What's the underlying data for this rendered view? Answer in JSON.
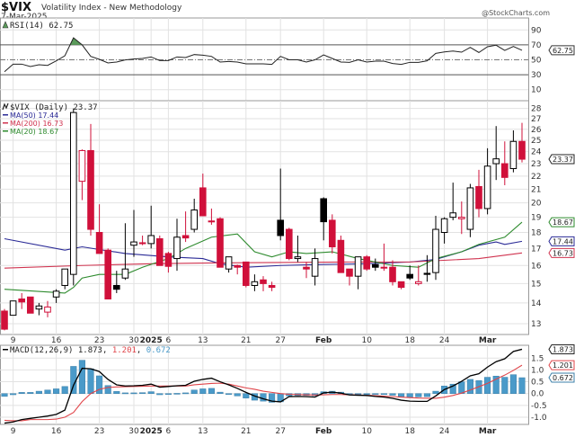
{
  "header": {
    "symbol": "$VIX",
    "name": "Volatility Index - New Methodology",
    "date": "7-Mar-2025",
    "watermark": "@StockCharts.com"
  },
  "colors": {
    "up": "#000000",
    "down": "#d0103a",
    "ma50": "#2a2a96",
    "ma200": "#d0334f",
    "ma20": "#2e8b2e",
    "macd": "#000000",
    "signal": "#e0454a",
    "histogram": "#4a9ac9",
    "rsi_fill": "#5a9a5a"
  },
  "chart_data": [
    {
      "type": "line",
      "panel": "rsi",
      "legend": "RSI(14) 62.75",
      "last_label": "62.75",
      "ylim": [
        0,
        100
      ],
      "yticks": [
        10,
        30,
        50,
        70,
        90
      ],
      "reference_lines": [
        30,
        50,
        70
      ],
      "grid": true,
      "values": [
        34.1,
        44.2,
        44.2,
        41,
        43.4,
        42.5,
        48.6,
        55.4,
        79.5,
        70,
        54.6,
        50.6,
        45.8,
        47,
        49.8,
        51,
        51.8,
        53.8,
        49,
        49,
        53.8,
        53,
        57,
        56.2,
        54.6,
        47,
        47.8,
        47,
        44.6,
        44.6,
        44.6,
        43.8,
        54.6,
        50,
        50,
        47,
        50,
        56.6,
        51.8,
        47,
        46.6,
        50,
        47,
        48.2,
        48.2,
        45,
        43.8,
        46.6,
        46.6,
        48.6,
        58.6,
        60.6,
        61.8,
        60.2,
        66.6,
        59.8,
        67.5,
        69.5,
        62.6,
        67.8,
        62.75
      ]
    },
    {
      "type": "candlestick",
      "panel": "price",
      "scale": "log",
      "legend": "$VIX (Daily) 23.37",
      "last_label": "23.37",
      "ylim": [
        12.5,
        28.5
      ],
      "yticks": [
        13,
        14,
        15,
        16,
        17,
        18,
        19,
        20,
        21,
        22,
        23,
        24,
        25,
        26,
        27,
        28
      ],
      "grid": true,
      "dates": [
        "2024-12-06",
        "2024-12-09",
        "2024-12-10",
        "2024-12-11",
        "2024-12-12",
        "2024-12-13",
        "2024-12-16",
        "2024-12-17",
        "2024-12-18",
        "2024-12-19",
        "2024-12-20",
        "2024-12-23",
        "2024-12-24",
        "2024-12-26",
        "2024-12-27",
        "2024-12-30",
        "2024-12-31",
        "2025-01-02",
        "2025-01-03",
        "2025-01-06",
        "2025-01-07",
        "2025-01-08",
        "2025-01-10",
        "2025-01-13",
        "2025-01-14",
        "2025-01-15",
        "2025-01-16",
        "2025-01-17",
        "2025-01-21",
        "2025-01-22",
        "2025-01-23",
        "2025-01-24",
        "2025-01-27",
        "2025-01-28",
        "2025-01-29",
        "2025-01-30",
        "2025-01-31",
        "2025-02-03",
        "2025-02-04",
        "2025-02-05",
        "2025-02-06",
        "2025-02-07",
        "2025-02-10",
        "2025-02-11",
        "2025-02-12",
        "2025-02-13",
        "2025-02-14",
        "2025-02-18",
        "2025-02-19",
        "2025-02-20",
        "2025-02-21",
        "2025-02-24",
        "2025-02-25",
        "2025-02-26",
        "2025-02-27",
        "2025-02-28",
        "2025-03-03",
        "2025-03-04",
        "2025-03-05",
        "2025-03-06",
        "2025-03-07"
      ],
      "ohlc": [
        [
          13.6,
          13.7,
          12.7,
          12.75
        ],
        [
          13.4,
          14.1,
          13.4,
          14.1
        ],
        [
          14.2,
          14.5,
          13.7,
          14.05
        ],
        [
          14.3,
          14.3,
          13.5,
          13.5
        ],
        [
          13.7,
          14.0,
          13.4,
          13.85
        ],
        [
          13.55,
          14.1,
          13.3,
          13.8
        ],
        [
          14.3,
          14.7,
          14.0,
          14.6
        ],
        [
          14.9,
          15.8,
          14.7,
          15.8
        ],
        [
          15.5,
          28.0,
          14.9,
          27.6
        ],
        [
          21.6,
          24.2,
          20.2,
          24.1
        ],
        [
          24.1,
          26.5,
          17.8,
          18.2
        ],
        [
          18.0,
          19.9,
          16.7,
          16.7
        ],
        [
          16.9,
          17.0,
          14.2,
          14.2
        ],
        [
          14.9,
          15.7,
          14.5,
          14.7
        ],
        [
          15.3,
          18.6,
          15.2,
          15.8
        ],
        [
          17.2,
          19.5,
          16.5,
          17.4
        ],
        [
          17.35,
          17.8,
          17.2,
          17.3
        ],
        [
          17.3,
          19.8,
          17.0,
          17.8
        ],
        [
          17.6,
          17.8,
          16.0,
          16.0
        ],
        [
          16.7,
          16.8,
          15.6,
          15.95
        ],
        [
          16.4,
          18.9,
          15.7,
          17.7
        ],
        [
          17.8,
          19.4,
          17.4,
          17.65
        ],
        [
          18.2,
          20.3,
          18.0,
          19.5
        ],
        [
          21.1,
          22.2,
          19.1,
          19.1
        ],
        [
          18.75,
          19.6,
          18.5,
          18.7
        ],
        [
          18.9,
          19.0,
          15.9,
          15.9
        ],
        [
          15.8,
          16.5,
          15.6,
          16.5
        ],
        [
          16.0,
          16.05,
          15.5,
          15.9
        ],
        [
          16.2,
          16.2,
          14.8,
          14.9
        ],
        [
          14.9,
          15.5,
          14.6,
          15.1
        ],
        [
          15.2,
          15.4,
          14.6,
          15.0
        ],
        [
          14.9,
          15.1,
          14.6,
          14.8
        ],
        [
          18.8,
          22.6,
          17.5,
          17.8
        ],
        [
          18.2,
          18.3,
          16.3,
          16.4
        ],
        [
          16.4,
          17.8,
          16.2,
          16.5
        ],
        [
          15.9,
          16.2,
          15.3,
          15.8
        ],
        [
          15.4,
          17.0,
          14.9,
          16.4
        ],
        [
          20.3,
          20.4,
          17.5,
          18.7
        ],
        [
          18.8,
          19.2,
          16.7,
          17.1
        ],
        [
          17.5,
          17.8,
          15.6,
          15.6
        ],
        [
          15.8,
          15.8,
          14.9,
          15.4
        ],
        [
          15.4,
          16.5,
          14.7,
          16.5
        ],
        [
          16.5,
          16.6,
          15.7,
          15.8
        ],
        [
          16.05,
          16.4,
          15.7,
          15.9
        ],
        [
          15.9,
          17.3,
          15.7,
          15.85
        ],
        [
          15.9,
          16.3,
          14.9,
          15.1
        ],
        [
          15.1,
          15.1,
          14.7,
          14.8
        ],
        [
          15.5,
          16.0,
          15.2,
          15.3
        ],
        [
          15.0,
          16.0,
          14.9,
          15.1
        ],
        [
          15.56,
          16.6,
          15.1,
          15.5
        ],
        [
          15.6,
          19.1,
          15.2,
          18.2
        ],
        [
          18.0,
          19.0,
          17.3,
          18.9
        ],
        [
          19.0,
          21.5,
          18.8,
          19.3
        ],
        [
          18.9,
          20.1,
          17.9,
          19.0
        ],
        [
          18.2,
          21.4,
          17.7,
          21.1
        ],
        [
          21.2,
          22.5,
          19.0,
          19.6
        ],
        [
          19.6,
          24.3,
          19.2,
          22.8
        ],
        [
          23.0,
          26.3,
          21.7,
          23.4
        ],
        [
          23.0,
          24.9,
          21.3,
          21.9
        ],
        [
          22.6,
          25.9,
          22.3,
          24.9
        ],
        [
          24.9,
          26.6,
          23.1,
          23.37
        ]
      ],
      "overlays": [
        {
          "name": "MA(50)",
          "value_label": "17.44",
          "color_key": "ma50",
          "points": [
            [
              "2024-12-06",
              17.6
            ],
            [
              "2024-12-17",
              16.9
            ],
            [
              "2024-12-19",
              17.1
            ],
            [
              "2024-12-27",
              16.7
            ],
            [
              "2025-01-06",
              16.5
            ],
            [
              "2025-01-13",
              16.4
            ],
            [
              "2025-01-15",
              16.1
            ],
            [
              "2025-01-21",
              15.9
            ],
            [
              "2025-01-27",
              16.0
            ],
            [
              "2025-01-31",
              16.05
            ],
            [
              "2025-02-10",
              16.1
            ],
            [
              "2025-02-18",
              16.2
            ],
            [
              "2025-02-21",
              16.35
            ],
            [
              "2025-02-26",
              16.8
            ],
            [
              "2025-02-28",
              17.2
            ],
            [
              "2025-03-04",
              17.4
            ],
            [
              "2025-03-05",
              17.25
            ],
            [
              "2025-03-07",
              17.44
            ]
          ]
        },
        {
          "name": "MA(200)",
          "value_label": "16.73",
          "color_key": "ma200",
          "points": [
            [
              "2024-12-06",
              15.85
            ],
            [
              "2024-12-19",
              16.0
            ],
            [
              "2025-01-02",
              16.1
            ],
            [
              "2025-01-15",
              16.15
            ],
            [
              "2025-02-06",
              16.2
            ],
            [
              "2025-02-18",
              16.2
            ],
            [
              "2025-02-28",
              16.4
            ],
            [
              "2025-03-07",
              16.73
            ]
          ]
        },
        {
          "name": "MA(20)",
          "value_label": "18.67",
          "color_key": "ma20",
          "points": [
            [
              "2024-12-06",
              14.7
            ],
            [
              "2024-12-17",
              14.5
            ],
            [
              "2024-12-18",
              14.8
            ],
            [
              "2024-12-19",
              15.3
            ],
            [
              "2024-12-23",
              15.5
            ],
            [
              "2024-12-27",
              15.5
            ],
            [
              "2024-12-31",
              15.9
            ],
            [
              "2025-01-06",
              16.4
            ],
            [
              "2025-01-08",
              17.0
            ],
            [
              "2025-01-14",
              17.7
            ],
            [
              "2025-01-17",
              17.9
            ],
            [
              "2025-01-22",
              16.8
            ],
            [
              "2025-01-24",
              16.5
            ],
            [
              "2025-01-28",
              16.8
            ],
            [
              "2025-01-30",
              16.7
            ],
            [
              "2025-02-04",
              16.8
            ],
            [
              "2025-02-07",
              16.4
            ],
            [
              "2025-02-13",
              16.0
            ],
            [
              "2025-02-19",
              15.9
            ],
            [
              "2025-02-21",
              16.4
            ],
            [
              "2025-02-26",
              16.8
            ],
            [
              "2025-02-28",
              17.25
            ],
            [
              "2025-03-05",
              17.7
            ],
            [
              "2025-03-07",
              18.67
            ]
          ]
        }
      ]
    },
    {
      "type": "macd",
      "panel": "macd",
      "legend": {
        "name": "MACD(12,26,9)",
        "macd": "1.873",
        "signal": "1.201",
        "histogram": "0.672"
      },
      "ylim": [
        -1.3,
        2.0
      ],
      "yticks": [
        -1.0,
        -0.5,
        0.0,
        0.5,
        1.0,
        1.5
      ],
      "ytick_labels": [
        "-1.0",
        "-0.5",
        "0.0",
        "0.5",
        "1.0",
        "1.5"
      ],
      "grid": true,
      "macd": [
        -1.25,
        -1.2,
        -1.1,
        -1.05,
        -1.0,
        -0.95,
        -0.88,
        -0.7,
        0.35,
        1.07,
        1.05,
        0.93,
        0.6,
        0.37,
        0.32,
        0.33,
        0.35,
        0.4,
        0.27,
        0.3,
        0.33,
        0.35,
        0.52,
        0.6,
        0.65,
        0.5,
        0.37,
        0.22,
        0.05,
        -0.1,
        -0.22,
        -0.32,
        -0.35,
        -0.13,
        -0.12,
        -0.13,
        -0.15,
        0.03,
        0.06,
        0.02,
        -0.06,
        -0.07,
        -0.08,
        -0.12,
        -0.15,
        -0.2,
        -0.28,
        -0.32,
        -0.33,
        -0.33,
        -0.1,
        0.17,
        0.32,
        0.52,
        0.75,
        0.84,
        1.12,
        1.35,
        1.47,
        1.78,
        1.873
      ],
      "signal": [
        -1.13,
        -1.15,
        -1.15,
        -1.1,
        -1.1,
        -1.1,
        -1.08,
        -1.0,
        -0.8,
        -0.34,
        0.0,
        0.18,
        0.26,
        0.28,
        0.29,
        0.3,
        0.31,
        0.32,
        0.32,
        0.32,
        0.32,
        0.32,
        0.37,
        0.4,
        0.43,
        0.44,
        0.4,
        0.32,
        0.24,
        0.18,
        0.1,
        0.05,
        0.0,
        -0.03,
        -0.04,
        -0.05,
        -0.06,
        -0.05,
        -0.04,
        -0.04,
        -0.05,
        -0.06,
        -0.07,
        -0.09,
        -0.11,
        -0.13,
        -0.15,
        -0.17,
        -0.19,
        -0.2,
        -0.2,
        -0.15,
        -0.08,
        0.02,
        0.15,
        0.29,
        0.43,
        0.61,
        0.78,
        0.98,
        1.201
      ],
      "histogram": [
        -0.12,
        -0.05,
        0.05,
        0.05,
        0.1,
        0.15,
        0.2,
        0.3,
        1.15,
        1.41,
        1.05,
        0.75,
        0.34,
        0.09,
        0.03,
        0.03,
        0.04,
        0.08,
        -0.05,
        -0.02,
        0.01,
        0.03,
        0.15,
        0.2,
        0.22,
        0.06,
        -0.03,
        -0.1,
        -0.19,
        -0.28,
        -0.32,
        -0.37,
        -0.35,
        -0.1,
        -0.08,
        -0.08,
        -0.09,
        0.08,
        0.1,
        0.06,
        -0.01,
        -0.01,
        -0.01,
        -0.03,
        -0.04,
        -0.07,
        -0.13,
        -0.15,
        -0.14,
        -0.13,
        0.1,
        0.32,
        0.4,
        0.5,
        0.6,
        0.55,
        0.69,
        0.74,
        0.69,
        0.8,
        0.672
      ]
    }
  ],
  "x_axis": {
    "labels": [
      {
        "date": "2024-12-09",
        "text": "9",
        "bold": false
      },
      {
        "date": "2024-12-16",
        "text": "16",
        "bold": false
      },
      {
        "date": "2024-12-23",
        "text": "23",
        "bold": false
      },
      {
        "date": "2024-12-30",
        "text": "30",
        "bold": false
      },
      {
        "date": "2025-01-02",
        "text": "2025",
        "bold": true
      },
      {
        "date": "2025-01-06",
        "text": "6",
        "bold": false
      },
      {
        "date": "2025-01-13",
        "text": "13",
        "bold": false
      },
      {
        "date": "2025-01-21",
        "text": "21",
        "bold": false
      },
      {
        "date": "2025-01-27",
        "text": "27",
        "bold": false
      },
      {
        "date": "2025-02-03",
        "text": "Feb",
        "bold": true
      },
      {
        "date": "2025-02-10",
        "text": "10",
        "bold": false
      },
      {
        "date": "2025-02-18",
        "text": "18",
        "bold": false
      },
      {
        "date": "2025-02-24",
        "text": "24",
        "bold": false
      },
      {
        "date": "2025-03-03",
        "text": "Mar",
        "bold": true
      }
    ]
  }
}
